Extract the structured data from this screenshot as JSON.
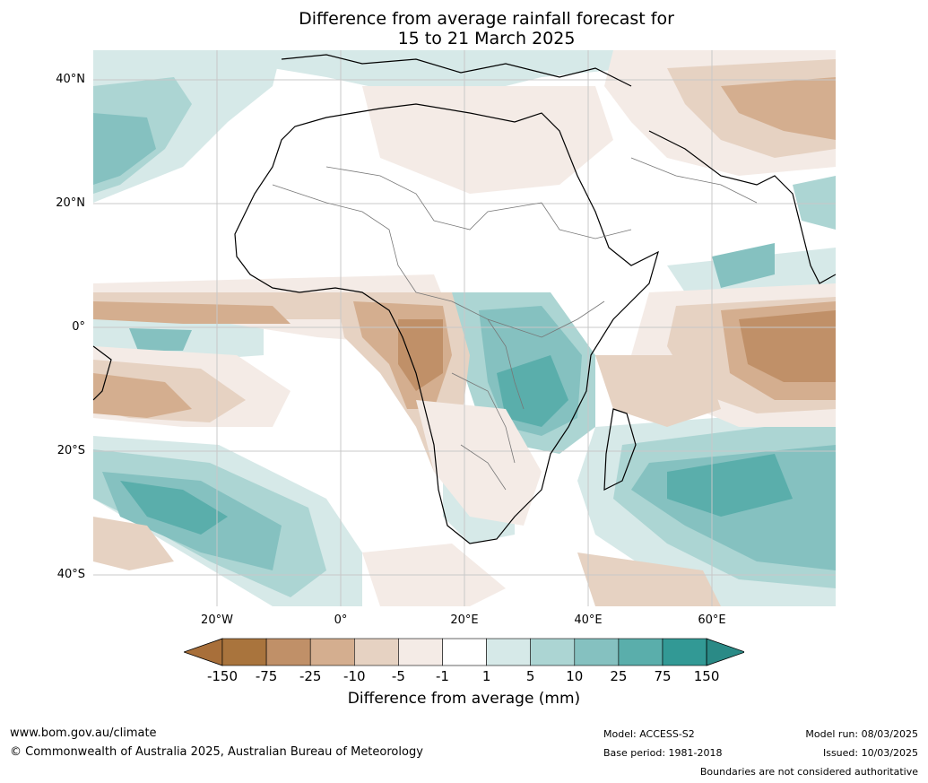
{
  "title": {
    "line1": "Difference from average rainfall forecast for",
    "line2": "15 to 21 March 2025"
  },
  "map": {
    "lat_labels": [
      "40°N",
      "20°N",
      "0°",
      "20°S",
      "40°S"
    ],
    "lon_labels": [
      "20°W",
      "0°",
      "20°E",
      "40°E",
      "60°E"
    ]
  },
  "colorbar": {
    "tick_labels": [
      "-150",
      "-75",
      "-25",
      "-10",
      "-5",
      "-1",
      "1",
      "5",
      "10",
      "25",
      "75",
      "150"
    ],
    "colors": [
      "#a86f3a",
      "#a9743d",
      "#c09068",
      "#d4ae8f",
      "#e6d2c2",
      "#f4ebe6",
      "#ffffff",
      "#d6e9e8",
      "#acd5d3",
      "#85c1c0",
      "#5aaeab",
      "#329995",
      "#2a8a86"
    ],
    "label": "Difference from average (mm)"
  },
  "footer": {
    "website": "www.bom.gov.au/climate",
    "copyright": "© Commonwealth of Australia 2025, Australian Bureau of Meteorology",
    "model": "Model: ACCESS-S2",
    "base_period": "Base period: 1981-2018",
    "model_run": "Model run: 08/03/2025",
    "issued": "Issued: 10/03/2025",
    "disclaimer": "Boundaries are not considered authoritative"
  }
}
